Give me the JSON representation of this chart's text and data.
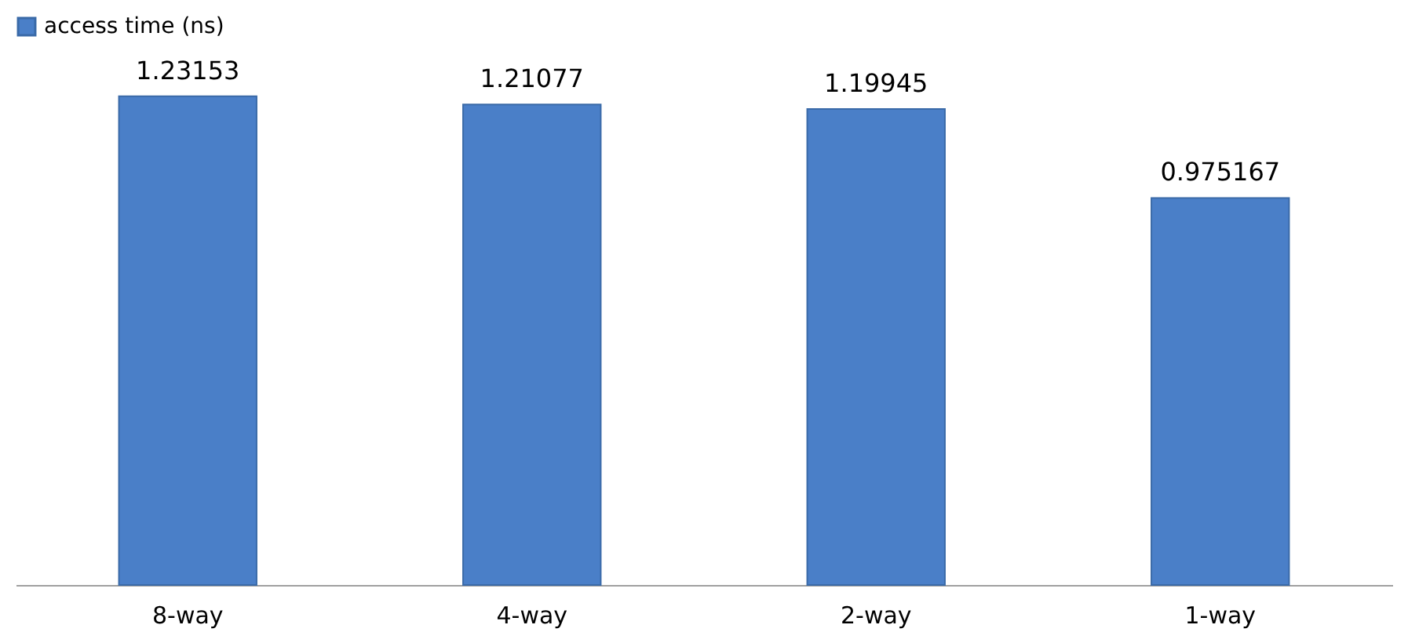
{
  "chart_data": {
    "type": "bar",
    "categories": [
      "8-way",
      "4-way",
      "2-way",
      "1-way"
    ],
    "series": [
      {
        "name": "access time (ns)",
        "color": "#4a7fc8",
        "values": [
          1.23153,
          1.21077,
          1.19945,
          0.975167
        ]
      }
    ],
    "data_labels": true,
    "legend": "top",
    "grid": false,
    "tick_labels": "x"
  }
}
